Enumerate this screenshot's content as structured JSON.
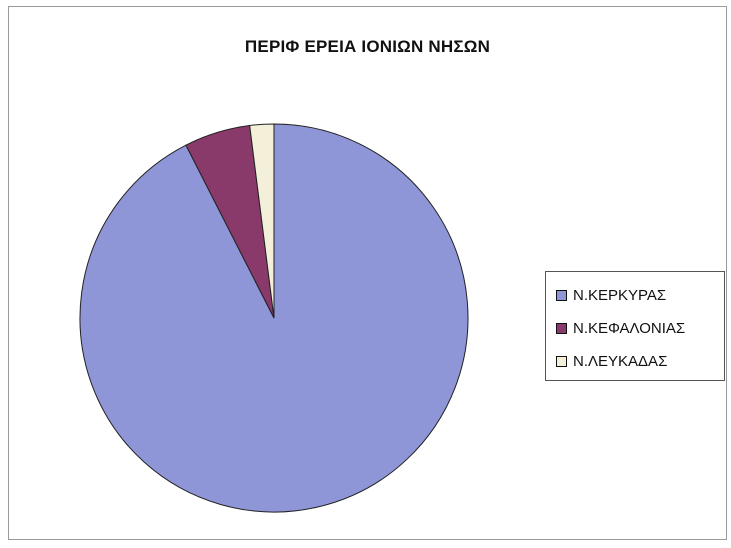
{
  "chart_data": {
    "type": "pie",
    "title": "ΠΕΡΙΦ ΕΡΕΙΑ ΙΟΝΙΩΝ ΝΗΣΩΝ",
    "categories": [
      "Ν.ΚΕΡΚΥΡΑΣ",
      "Ν.ΚΕΦΑΛΟΝΙΑΣ",
      "Ν.ΛΕΥΚΑΔΑΣ"
    ],
    "values": [
      92.5,
      5.5,
      2.0
    ],
    "colors": [
      "#8f96d8",
      "#8a3a6a",
      "#f3efd9"
    ],
    "legend": "right"
  }
}
